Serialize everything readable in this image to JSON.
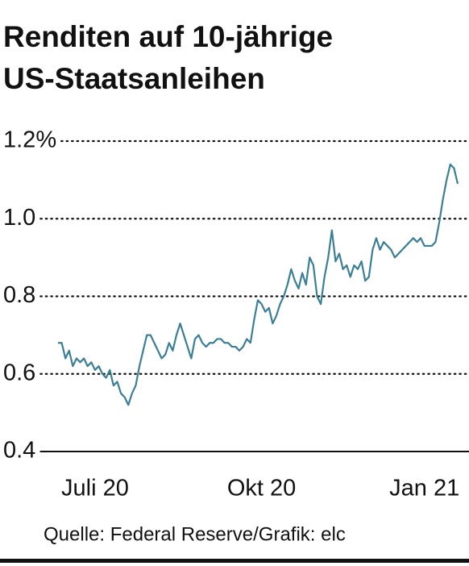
{
  "chart_data": {
    "type": "line",
    "title": [
      "Renditen auf 10-jährige",
      "US-Staatsanleihen"
    ],
    "source": "Quelle: Federal Reserve/Grafik: elc",
    "categories": [
      null,
      null,
      null,
      null,
      null,
      null,
      null,
      null,
      null,
      null,
      "Juli 20",
      null,
      null,
      null,
      null,
      null,
      null,
      null,
      null,
      null,
      null,
      null,
      null,
      null,
      null,
      null,
      null,
      null,
      null,
      null,
      null,
      null,
      null,
      null,
      null,
      null,
      null,
      null,
      null,
      null,
      null,
      null,
      null,
      null,
      null,
      null,
      null,
      null,
      null,
      null,
      null,
      null,
      null,
      null,
      null,
      "Okt 20",
      null,
      null,
      null,
      null,
      null,
      null,
      null,
      null,
      null,
      null,
      null,
      null,
      null,
      null,
      null,
      null,
      null,
      null,
      null,
      null,
      null,
      null,
      null,
      null,
      null,
      null,
      null,
      null,
      null,
      null,
      null,
      null,
      null,
      null,
      null,
      null,
      null,
      null,
      null,
      null,
      null,
      null,
      null,
      "Jan 21",
      null,
      null,
      null,
      null,
      null,
      null,
      null,
      null,
      null
    ],
    "values": [
      0.68,
      0.68,
      0.64,
      0.66,
      0.62,
      0.64,
      0.63,
      0.64,
      0.62,
      0.63,
      0.61,
      0.62,
      0.6,
      0.59,
      0.61,
      0.57,
      0.58,
      0.55,
      0.54,
      0.52,
      0.55,
      0.57,
      0.62,
      0.66,
      0.7,
      0.7,
      0.68,
      0.66,
      0.64,
      0.65,
      0.68,
      0.66,
      0.7,
      0.73,
      0.7,
      0.67,
      0.64,
      0.69,
      0.7,
      0.68,
      0.67,
      0.68,
      0.68,
      0.69,
      0.69,
      0.68,
      0.68,
      0.67,
      0.67,
      0.66,
      0.67,
      0.69,
      0.68,
      0.74,
      0.79,
      0.78,
      0.76,
      0.77,
      0.73,
      0.75,
      0.78,
      0.8,
      0.83,
      0.87,
      0.84,
      0.82,
      0.86,
      0.83,
      0.9,
      0.88,
      0.8,
      0.78,
      0.85,
      0.9,
      0.97,
      0.89,
      0.91,
      0.87,
      0.88,
      0.85,
      0.88,
      0.87,
      0.89,
      0.84,
      0.85,
      0.92,
      0.95,
      0.92,
      0.94,
      0.93,
      0.92,
      0.9,
      0.91,
      0.92,
      0.93,
      0.94,
      0.95,
      0.94,
      0.95,
      0.93,
      0.93,
      0.93,
      0.94,
      0.99,
      1.05,
      1.1,
      1.14,
      1.13,
      1.09
    ],
    "color": "#3a7f96",
    "ylim": [
      0.4,
      1.2
    ],
    "yticks": [
      0.4,
      0.6,
      0.8,
      {
        "value": 1,
        "label": "1.0"
      },
      {
        "value": 1.2,
        "label": "1.2%"
      }
    ],
    "grid": true
  }
}
